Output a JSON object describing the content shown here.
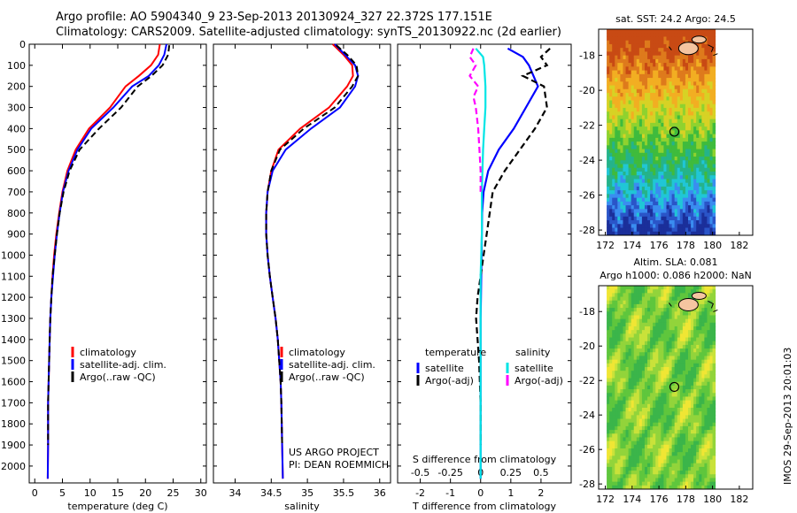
{
  "title": {
    "line1": "Argo profile: AO 5904340_9 23-Sep-2013 20130924_327 22.372S 177.151E",
    "line2": "Climatology: CARS2009. Satellite-adjusted climatology: synTS_20130922.nc (2d earlier)"
  },
  "credits": {
    "project": "US ARGO PROJECT",
    "pi": "PI: DEAN ROEMMICH",
    "stamp": "IMOS 29-Sep-2013 20:01:03"
  },
  "colors": {
    "climatology": "#ff0000",
    "satellite": "#0000ff",
    "argo": "#000000",
    "sal_satellite": "#00e5e5",
    "sal_argo": "#ff00ff"
  },
  "chart_data": [
    {
      "type": "line",
      "name": "temperature profile",
      "xlabel": "temperature (deg C)",
      "ylabel": "",
      "xlim": [
        -1,
        31
      ],
      "ylim": [
        2080,
        0
      ],
      "xticks": [
        0,
        5,
        10,
        15,
        20,
        25,
        30
      ],
      "yticks": [
        0,
        100,
        200,
        300,
        400,
        500,
        600,
        700,
        800,
        900,
        1000,
        1100,
        1200,
        1300,
        1400,
        1500,
        1600,
        1700,
        1800,
        1900,
        2000
      ],
      "legend": {
        "placement": "lower-left",
        "entries": [
          "climatology",
          "satellite-adj. clim.",
          "Argo(..raw -QC)"
        ]
      },
      "series": [
        {
          "name": "climatology",
          "x": [
            22.6,
            22.3,
            21,
            18.8,
            16.4,
            13.6,
            9.8,
            7.4,
            5.9,
            5,
            4.4,
            3.9,
            3.5,
            3.2,
            3,
            2.8,
            2.7,
            2.6,
            2.5,
            2.4,
            2.4,
            2.35
          ],
          "y": [
            0,
            50,
            100,
            150,
            200,
            300,
            400,
            500,
            600,
            700,
            800,
            900,
            1000,
            1100,
            1200,
            1300,
            1400,
            1500,
            1600,
            1700,
            1900,
            2060
          ]
        },
        {
          "name": "satellite-adj. clim.",
          "x": [
            23.8,
            23.4,
            22.4,
            20.6,
            17.6,
            14.2,
            10.2,
            7.7,
            6.1,
            5.1,
            4.5,
            4,
            3.6,
            3.3,
            3,
            2.8,
            2.7,
            2.6,
            2.5,
            2.4,
            2.4,
            2.35
          ],
          "y": [
            0,
            50,
            100,
            150,
            200,
            300,
            400,
            500,
            600,
            700,
            800,
            900,
            1000,
            1100,
            1200,
            1300,
            1400,
            1500,
            1600,
            1700,
            1900,
            2060
          ]
        },
        {
          "name": "Argo(..raw -QC)",
          "x": [
            24.3,
            24.1,
            23.1,
            21.1,
            18.6,
            15.6,
            11.6,
            8.1,
            6.3,
            5.2,
            4.5,
            4,
            3.6,
            3.2,
            3,
            2.8,
            2.7,
            2.6,
            2.5,
            2.4,
            2.4
          ],
          "y": [
            5,
            50,
            100,
            150,
            200,
            300,
            400,
            500,
            600,
            700,
            800,
            900,
            1000,
            1100,
            1200,
            1300,
            1400,
            1500,
            1600,
            1700,
            1900
          ]
        }
      ]
    },
    {
      "type": "line",
      "name": "salinity profile",
      "xlabel": "salinity",
      "xlim": [
        33.7,
        36.15
      ],
      "ylim": [
        2080,
        0
      ],
      "xticks": [
        34,
        34.5,
        35,
        35.5,
        36
      ],
      "legend": {
        "placement": "lower-right",
        "entries": [
          "climatology",
          "satellite-adj. clim.",
          "Argo(..raw -QC)"
        ]
      },
      "series": [
        {
          "name": "climatology",
          "x": [
            35.35,
            35.5,
            35.62,
            35.63,
            35.55,
            35.3,
            34.9,
            34.6,
            34.5,
            34.45,
            34.43,
            34.43,
            34.45,
            34.48,
            34.52,
            34.56,
            34.59,
            34.61,
            34.63,
            34.64,
            34.65,
            34.66
          ],
          "y": [
            0,
            50,
            100,
            150,
            200,
            300,
            400,
            500,
            600,
            700,
            800,
            900,
            1000,
            1100,
            1200,
            1300,
            1400,
            1500,
            1600,
            1700,
            1900,
            2060
          ]
        },
        {
          "name": "satellite-adj. clim.",
          "x": [
            35.38,
            35.52,
            35.66,
            35.7,
            35.66,
            35.45,
            35.05,
            34.7,
            34.52,
            34.45,
            34.43,
            34.43,
            34.45,
            34.48,
            34.52,
            34.56,
            34.59,
            34.61,
            34.63,
            34.64,
            34.65,
            34.66
          ],
          "y": [
            0,
            50,
            100,
            150,
            200,
            300,
            400,
            500,
            600,
            700,
            800,
            900,
            1000,
            1100,
            1200,
            1300,
            1400,
            1500,
            1600,
            1700,
            1900,
            2060
          ]
        },
        {
          "name": "Argo(..raw -QC)",
          "x": [
            35.4,
            35.55,
            35.68,
            35.7,
            35.62,
            35.38,
            34.95,
            34.62,
            34.5,
            34.45,
            34.43,
            34.43,
            34.45,
            34.48,
            34.52,
            34.56,
            34.59,
            34.61,
            34.63,
            34.64,
            34.65
          ],
          "y": [
            5,
            50,
            100,
            150,
            200,
            300,
            400,
            500,
            600,
            700,
            800,
            900,
            1000,
            1100,
            1200,
            1300,
            1400,
            1500,
            1600,
            1700,
            1900
          ]
        }
      ]
    },
    {
      "type": "line",
      "name": "difference profile",
      "xlabel": "T difference from climatology",
      "xlabel_top": "S difference from climatology",
      "xlim": [
        -2.75,
        3
      ],
      "ylim": [
        2080,
        0
      ],
      "xticks": [
        -2,
        -1,
        0,
        1,
        2
      ],
      "xticks_top": [
        -0.5,
        -0.25,
        0,
        0.25,
        0.5
      ],
      "legend": {
        "placement": "lower",
        "groups": [
          {
            "heading": "temperature",
            "entries": [
              "satellite",
              "Argo(-adj)"
            ]
          },
          {
            "heading": "salinity",
            "entries": [
              "satellite",
              "Argo(-adj)"
            ]
          }
        ]
      },
      "series": [
        {
          "name": "temperature satellite",
          "x": [
            0.9,
            1.4,
            1.6,
            1.9,
            1.5,
            1.1,
            0.6,
            0.25,
            0.1,
            0.05,
            0.04,
            0.03,
            0.02,
            0.01,
            0,
            0,
            0,
            0,
            0
          ],
          "y": [
            20,
            60,
            100,
            200,
            300,
            400,
            500,
            600,
            700,
            800,
            900,
            1000,
            1100,
            1200,
            1300,
            1500,
            1700,
            1900,
            2060
          ]
        },
        {
          "name": "temperature Argo(-adj)",
          "x": [
            2.3,
            2.0,
            2.2,
            1.4,
            2.1,
            2.2,
            1.8,
            1.3,
            0.8,
            0.4,
            0.3,
            0.2,
            0.1,
            0,
            -0.1,
            -0.15,
            -0.05,
            0,
            0
          ],
          "y": [
            20,
            60,
            100,
            150,
            200,
            300,
            400,
            500,
            600,
            700,
            800,
            900,
            1000,
            1100,
            1200,
            1300,
            1500,
            1700,
            1900
          ]
        },
        {
          "name": "salinity satellite",
          "x": [
            -0.04,
            0.02,
            0.03,
            0.04,
            0.04,
            0.03,
            0.02,
            0.01,
            0.01,
            0,
            0,
            0,
            0
          ],
          "y": [
            20,
            60,
            100,
            200,
            300,
            400,
            500,
            700,
            900,
            1100,
            1400,
            1800,
            2060
          ]
        },
        {
          "name": "salinity Argo(-adj)",
          "x": [
            -0.06,
            -0.09,
            -0.04,
            -0.09,
            -0.02,
            -0.06,
            -0.04,
            -0.02,
            -0.01,
            0,
            0
          ],
          "y": [
            20,
            60,
            100,
            150,
            200,
            250,
            300,
            400,
            500,
            600,
            700
          ]
        }
      ]
    },
    {
      "type": "heatmap",
      "name": "sst map",
      "title": "sat. SST: 24.2 Argo: 24.5",
      "xlim": [
        171.5,
        183
      ],
      "ylim": [
        -28.3,
        -16.5
      ],
      "xticks": [
        172,
        174,
        176,
        178,
        180,
        182
      ],
      "yticks": [
        -18,
        -20,
        -22,
        -24,
        -26,
        -28
      ],
      "argo_position": {
        "lon": 177.151,
        "lat": -22.372
      }
    },
    {
      "type": "heatmap",
      "name": "sla map",
      "title": "Altim. SLA: 0.081",
      "subtitle": "Argo h1000: 0.086 h2000: NaN",
      "xlim": [
        171.5,
        183
      ],
      "ylim": [
        -28.3,
        -16.5
      ],
      "xticks": [
        172,
        174,
        176,
        178,
        180,
        182
      ],
      "yticks": [
        -18,
        -20,
        -22,
        -24,
        -26,
        -28
      ],
      "argo_position": {
        "lon": 177.151,
        "lat": -22.372
      }
    }
  ]
}
